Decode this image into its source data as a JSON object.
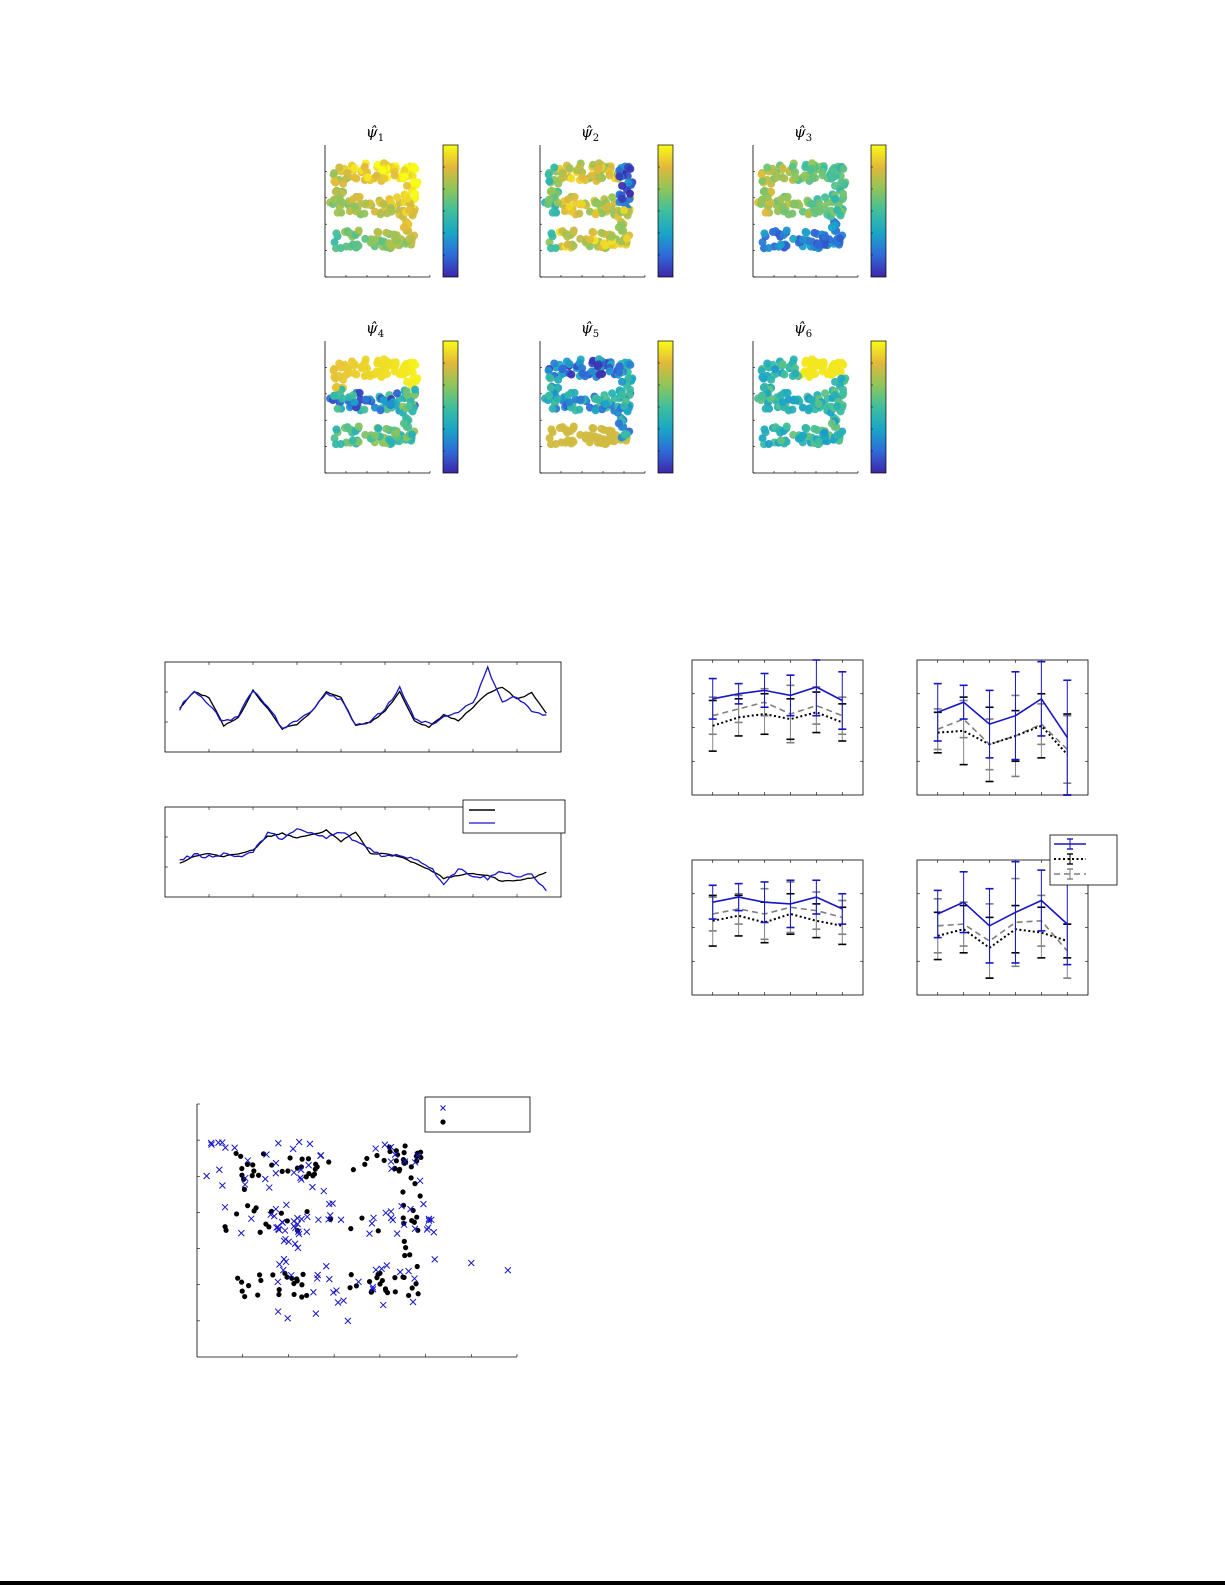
{
  "colors": {
    "blue": "#1616c8",
    "black": "#000000",
    "gray": "#7f7f7f",
    "colormap": [
      "#3e26a8",
      "#2f6bd9",
      "#1aa5c7",
      "#3fbf9e",
      "#8fc55a",
      "#e2b83a",
      "#f9fb15"
    ]
  },
  "eigenmap_panels": {
    "titles": [
      {
        "symbol": "ψ̂",
        "sub": "1"
      },
      {
        "symbol": "ψ̂",
        "sub": "2"
      },
      {
        "symbol": "ψ̂",
        "sub": "3"
      },
      {
        "symbol": "ψ̂",
        "sub": "4"
      },
      {
        "symbol": "ψ̂",
        "sub": "5"
      },
      {
        "symbol": "ψ̂",
        "sub": "6"
      }
    ],
    "colormap_name": "parula",
    "marker": "filled-circle"
  },
  "chart_data": [
    {
      "type": "line",
      "panel": "time-series-top",
      "x": [
        0,
        4,
        8,
        12,
        16,
        20,
        24,
        28,
        32,
        36,
        40,
        44,
        48,
        52,
        56,
        60,
        64,
        68,
        72,
        76,
        80,
        84,
        88,
        92,
        96,
        100
      ],
      "series": [
        {
          "color": "black",
          "values": [
            0.22,
            0.75,
            0.55,
            -0.35,
            -0.1,
            0.78,
            0.2,
            -0.45,
            -0.3,
            0.1,
            0.75,
            0.55,
            -0.35,
            -0.25,
            0.1,
            0.75,
            -0.2,
            -0.4,
            0.0,
            -0.2,
            0.25,
            0.7,
            0.9,
            0.5,
            0.7,
            0.05
          ]
        },
        {
          "color": "blue",
          "values": [
            0.2,
            0.8,
            0.3,
            -0.25,
            0.0,
            0.8,
            0.3,
            -0.45,
            -0.2,
            0.15,
            0.72,
            0.5,
            -0.3,
            -0.25,
            0.2,
            0.85,
            -0.15,
            -0.3,
            -0.1,
            0.1,
            0.35,
            1.5,
            0.4,
            0.6,
            0.1,
            0.0
          ]
        }
      ]
    },
    {
      "type": "line",
      "panel": "time-series-bottom",
      "x": [
        0,
        4,
        8,
        12,
        16,
        20,
        24,
        28,
        32,
        36,
        40,
        44,
        48,
        52,
        56,
        60,
        64,
        68,
        72,
        76,
        80,
        84,
        88,
        92,
        96,
        100
      ],
      "series": [
        {
          "color": "black",
          "values": [
            -0.1,
            0.1,
            0.2,
            0.1,
            0.2,
            0.3,
            0.75,
            0.85,
            0.7,
            0.8,
            0.95,
            0.6,
            0.9,
            0.2,
            0.2,
            0.1,
            -0.1,
            -0.3,
            -0.6,
            -0.5,
            -0.45,
            -0.5,
            -0.7,
            -0.65,
            -0.6,
            -0.4
          ]
        },
        {
          "color": "blue",
          "values": [
            0.0,
            0.15,
            0.1,
            0.2,
            0.1,
            0.25,
            0.85,
            0.7,
            0.95,
            0.85,
            0.7,
            0.9,
            0.6,
            0.35,
            0.1,
            0.15,
            0.05,
            -0.2,
            -0.75,
            -0.3,
            -0.5,
            -0.6,
            -0.35,
            -0.55,
            -0.5,
            -1.0
          ]
        }
      ]
    },
    {
      "type": "line",
      "panel": "error-bars-top-left",
      "x": [
        1,
        2,
        3,
        4,
        5,
        6
      ],
      "ylim": [
        0,
        4
      ],
      "series": [
        {
          "color": "blue",
          "style": "solid",
          "values": [
            2.85,
            3.0,
            3.1,
            2.95,
            3.2,
            2.8
          ],
          "err": [
            0.6,
            0.3,
            0.5,
            0.6,
            0.85,
            0.85
          ]
        },
        {
          "color": "black",
          "style": "dotted",
          "values": [
            2.05,
            2.3,
            2.4,
            2.25,
            2.45,
            2.15
          ],
          "err": [
            0.75,
            0.55,
            0.6,
            0.6,
            0.6,
            0.55
          ]
        },
        {
          "color": "gray",
          "style": "dashed",
          "values": [
            2.35,
            2.55,
            2.75,
            2.4,
            2.65,
            2.35
          ],
          "err": [
            0.55,
            0.4,
            0.4,
            0.85,
            0.55,
            0.55
          ]
        }
      ]
    },
    {
      "type": "line",
      "panel": "error-bars-top-right",
      "x": [
        1,
        2,
        3,
        4,
        5,
        6
      ],
      "ylim": [
        0,
        4
      ],
      "series": [
        {
          "color": "blue",
          "style": "solid",
          "values": [
            2.45,
            2.75,
            2.1,
            2.35,
            2.85,
            1.7
          ],
          "err": [
            0.85,
            0.5,
            1.0,
            1.3,
            1.1,
            1.7
          ]
        },
        {
          "color": "black",
          "style": "dotted",
          "values": [
            1.85,
            1.9,
            1.5,
            1.75,
            2.05,
            1.2
          ],
          "err": [
            0.6,
            1.0,
            1.1,
            0.75,
            0.95,
            1.2
          ]
        },
        {
          "color": "gray",
          "style": "dashed",
          "values": [
            1.95,
            2.25,
            1.5,
            1.75,
            2.1,
            1.35
          ],
          "err": [
            0.6,
            0.55,
            0.75,
            1.2,
            0.6,
            1.0
          ]
        }
      ]
    },
    {
      "type": "line",
      "panel": "error-bars-bottom-left",
      "x": [
        1,
        2,
        3,
        4,
        5,
        6
      ],
      "ylim": [
        0,
        4
      ],
      "series": [
        {
          "color": "blue",
          "style": "solid",
          "values": [
            2.75,
            2.9,
            2.75,
            2.7,
            2.9,
            2.55
          ],
          "err": [
            0.5,
            0.4,
            0.6,
            0.7,
            0.5,
            0.45
          ]
        },
        {
          "color": "black",
          "style": "dotted",
          "values": [
            2.2,
            2.35,
            2.15,
            2.4,
            2.2,
            2.05
          ],
          "err": [
            0.75,
            0.6,
            0.6,
            0.6,
            0.5,
            0.55
          ]
        },
        {
          "color": "gray",
          "style": "dashed",
          "values": [
            2.4,
            2.55,
            2.4,
            2.6,
            2.5,
            2.3
          ],
          "err": [
            0.5,
            0.45,
            0.75,
            0.75,
            0.55,
            0.5
          ]
        }
      ]
    },
    {
      "type": "line",
      "panel": "error-bars-bottom-right",
      "x": [
        1,
        2,
        3,
        4,
        5,
        6
      ],
      "ylim": [
        0,
        4
      ],
      "series": [
        {
          "color": "blue",
          "style": "solid",
          "values": [
            2.4,
            2.75,
            2.05,
            2.45,
            2.8,
            2.1
          ],
          "err": [
            0.7,
            0.9,
            1.1,
            1.5,
            0.9,
            1.2
          ]
        },
        {
          "color": "black",
          "style": "dotted",
          "values": [
            1.75,
            1.95,
            1.4,
            1.95,
            1.85,
            1.6
          ],
          "err": [
            0.7,
            0.7,
            0.9,
            0.7,
            0.75,
            0.5
          ]
        },
        {
          "color": "gray",
          "style": "dashed",
          "values": [
            2.05,
            2.1,
            1.6,
            2.15,
            2.2,
            1.3
          ],
          "err": [
            0.8,
            0.65,
            1.1,
            1.3,
            0.75,
            0.8
          ]
        }
      ]
    },
    {
      "type": "scatter",
      "panel": "scatter-bottom",
      "xlim": [
        0,
        7
      ],
      "ylim": [
        0,
        7
      ],
      "series": [
        {
          "color": "blue",
          "marker": "x"
        },
        {
          "color": "black",
          "marker": "filled-circle"
        }
      ]
    }
  ]
}
